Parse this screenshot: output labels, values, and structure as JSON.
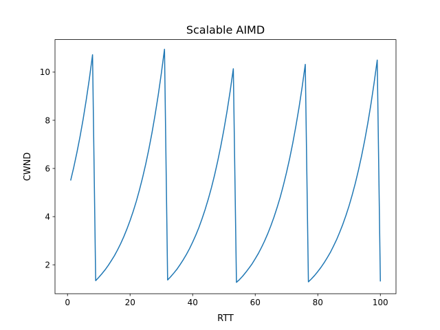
{
  "chart_data": {
    "type": "line",
    "title": "Scalable AIMD",
    "xlabel": "RTT",
    "ylabel": "CWND",
    "xlim": [
      -4,
      105
    ],
    "ylim": [
      0.8,
      11.35
    ],
    "xticks": [
      0,
      20,
      40,
      60,
      80,
      100
    ],
    "yticks": [
      2,
      4,
      6,
      8,
      10
    ],
    "xtick_labels": [
      "0",
      "20",
      "40",
      "60",
      "80",
      "100"
    ],
    "ytick_labels": [
      "2",
      "4",
      "6",
      "8",
      "10"
    ],
    "grid": false,
    "legend": "none",
    "series": [
      {
        "color": "#1f77b4",
        "x": [
          1,
          2,
          3,
          4,
          5,
          6,
          7,
          8,
          9,
          10,
          11,
          12,
          13,
          14,
          15,
          16,
          17,
          18,
          19,
          20,
          21,
          22,
          23,
          24,
          25,
          26,
          27,
          28,
          29,
          30,
          31,
          32,
          33,
          34,
          35,
          36,
          37,
          38,
          39,
          40,
          41,
          42,
          43,
          44,
          45,
          46,
          47,
          48,
          49,
          50,
          51,
          52,
          53,
          54,
          55,
          56,
          57,
          58,
          59,
          60,
          61,
          62,
          63,
          64,
          65,
          66,
          67,
          68,
          69,
          70,
          71,
          72,
          73,
          74,
          75,
          76,
          77,
          78,
          79,
          80,
          81,
          82,
          83,
          84,
          85,
          86,
          87,
          88,
          89,
          90,
          91,
          92,
          93,
          94,
          95,
          96,
          97,
          98,
          99,
          100
        ],
        "y": [
          5.5,
          6.05,
          6.66,
          7.32,
          8.05,
          8.86,
          9.74,
          10.72,
          1.34,
          1.48,
          1.63,
          1.79,
          1.97,
          2.17,
          2.38,
          2.62,
          2.88,
          3.17,
          3.49,
          3.84,
          4.22,
          4.64,
          5.11,
          5.62,
          6.18,
          6.8,
          7.48,
          8.23,
          9.05,
          9.96,
          10.95,
          1.37,
          1.51,
          1.66,
          1.82,
          2.01,
          2.21,
          2.43,
          2.67,
          2.94,
          3.23,
          3.55,
          3.91,
          4.3,
          4.73,
          5.2,
          5.72,
          6.3,
          6.93,
          7.62,
          8.38,
          9.22,
          10.14,
          1.27,
          1.39,
          1.53,
          1.69,
          1.86,
          2.04,
          2.25,
          2.47,
          2.72,
          2.99,
          3.29,
          3.62,
          3.98,
          4.38,
          4.81,
          5.3,
          5.83,
          6.41,
          7.05,
          7.76,
          8.53,
          9.38,
          10.32,
          1.29,
          1.42,
          1.56,
          1.72,
          1.89,
          2.08,
          2.29,
          2.51,
          2.77,
          3.04,
          3.35,
          3.68,
          4.05,
          4.45,
          4.9,
          5.39,
          5.93,
          6.52,
          7.17,
          7.89,
          8.68,
          9.55,
          10.5,
          1.31
        ]
      }
    ]
  }
}
